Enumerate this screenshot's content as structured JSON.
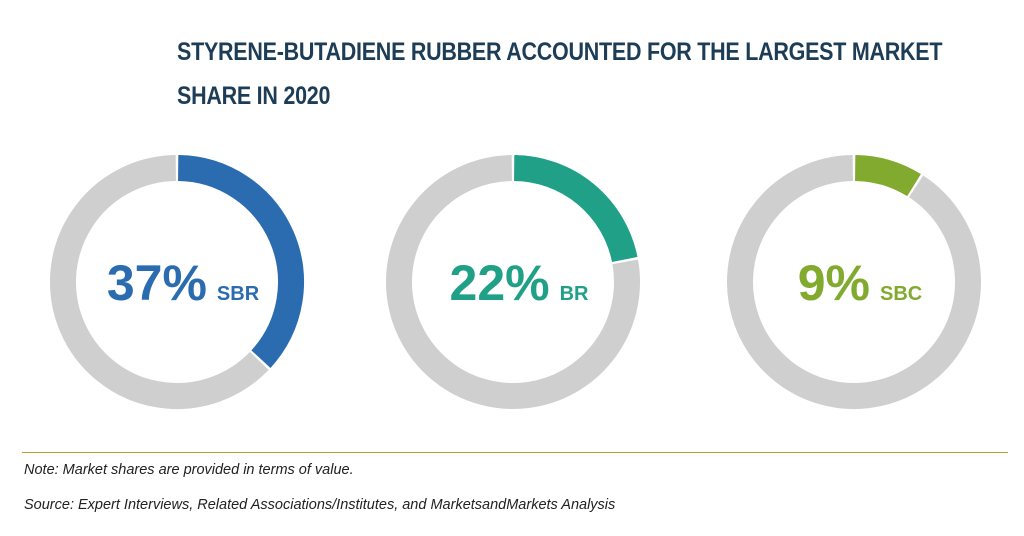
{
  "title": {
    "line1": "STYRENE-BUTADIENE RUBBER ACCOUNTED FOR THE LARGEST MARKET",
    "line2": "SHARE IN 2020"
  },
  "chart_data": [
    {
      "type": "pie",
      "variant": "donut",
      "value": 37,
      "value_label": "37%",
      "label": "SBR",
      "color": "#2b6cb0",
      "remainder_color": "#cfcfcf"
    },
    {
      "type": "pie",
      "variant": "donut",
      "value": 22,
      "value_label": "22%",
      "label": "BR",
      "color": "#21a088",
      "remainder_color": "#cfcfcf"
    },
    {
      "type": "pie",
      "variant": "donut",
      "value": 9,
      "value_label": "9%",
      "label": "SBC",
      "color": "#82aa2e",
      "remainder_color": "#cfcfcf"
    }
  ],
  "notes": {
    "note": "Note: Market shares are provided in terms of value.",
    "source": "Source: Expert Interviews, Related Associations/Institutes, and MarketsandMarkets Analysis"
  },
  "colors": {
    "title": "#1d3d57",
    "rule": "#b5a33a"
  }
}
